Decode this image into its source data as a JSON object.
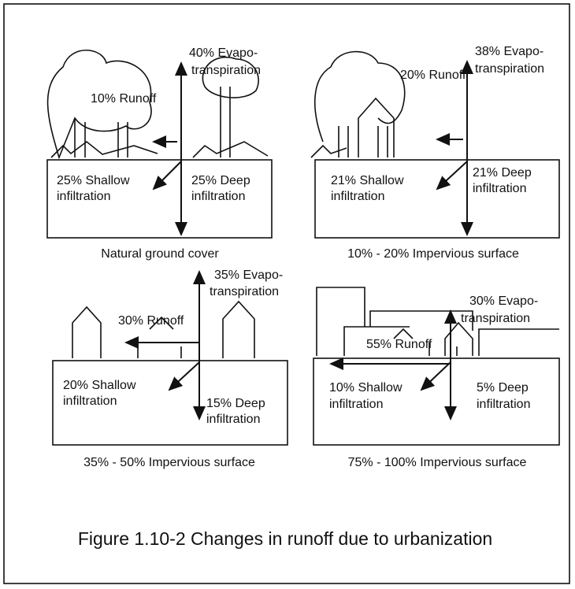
{
  "panels": [
    {
      "caption": "Natural ground cover",
      "runoff": "10% Runoff",
      "evapotranspiration": [
        "40% Evapo-",
        "transpiration"
      ],
      "shallow": [
        "25% Shallow",
        "infiltration"
      ],
      "deep": [
        "25% Deep",
        "infiltration"
      ]
    },
    {
      "caption": "10% - 20% Impervious surface",
      "runoff": "20% Runoff",
      "evapotranspiration": [
        "38% Evapo-",
        "transpiration"
      ],
      "shallow": [
        "21% Shallow",
        "infiltration"
      ],
      "deep": [
        "21% Deep",
        "infiltration"
      ]
    },
    {
      "caption": "35% - 50% Impervious surface",
      "runoff": "30% Runoff",
      "evapotranspiration": [
        "35% Evapo-",
        "transpiration"
      ],
      "shallow": [
        "20% Shallow",
        "infiltration"
      ],
      "deep": [
        "15% Deep",
        "infiltration"
      ]
    },
    {
      "caption": "75% - 100% Impervious surface",
      "runoff": "55% Runoff",
      "evapotranspiration": [
        "30% Evapo-",
        "transpiration"
      ],
      "shallow": [
        "10% Shallow",
        "infiltration"
      ],
      "deep": [
        "5% Deep",
        "infiltration"
      ]
    }
  ],
  "figure_title": "Figure 1.10-2 Changes in runoff due to urbanization"
}
